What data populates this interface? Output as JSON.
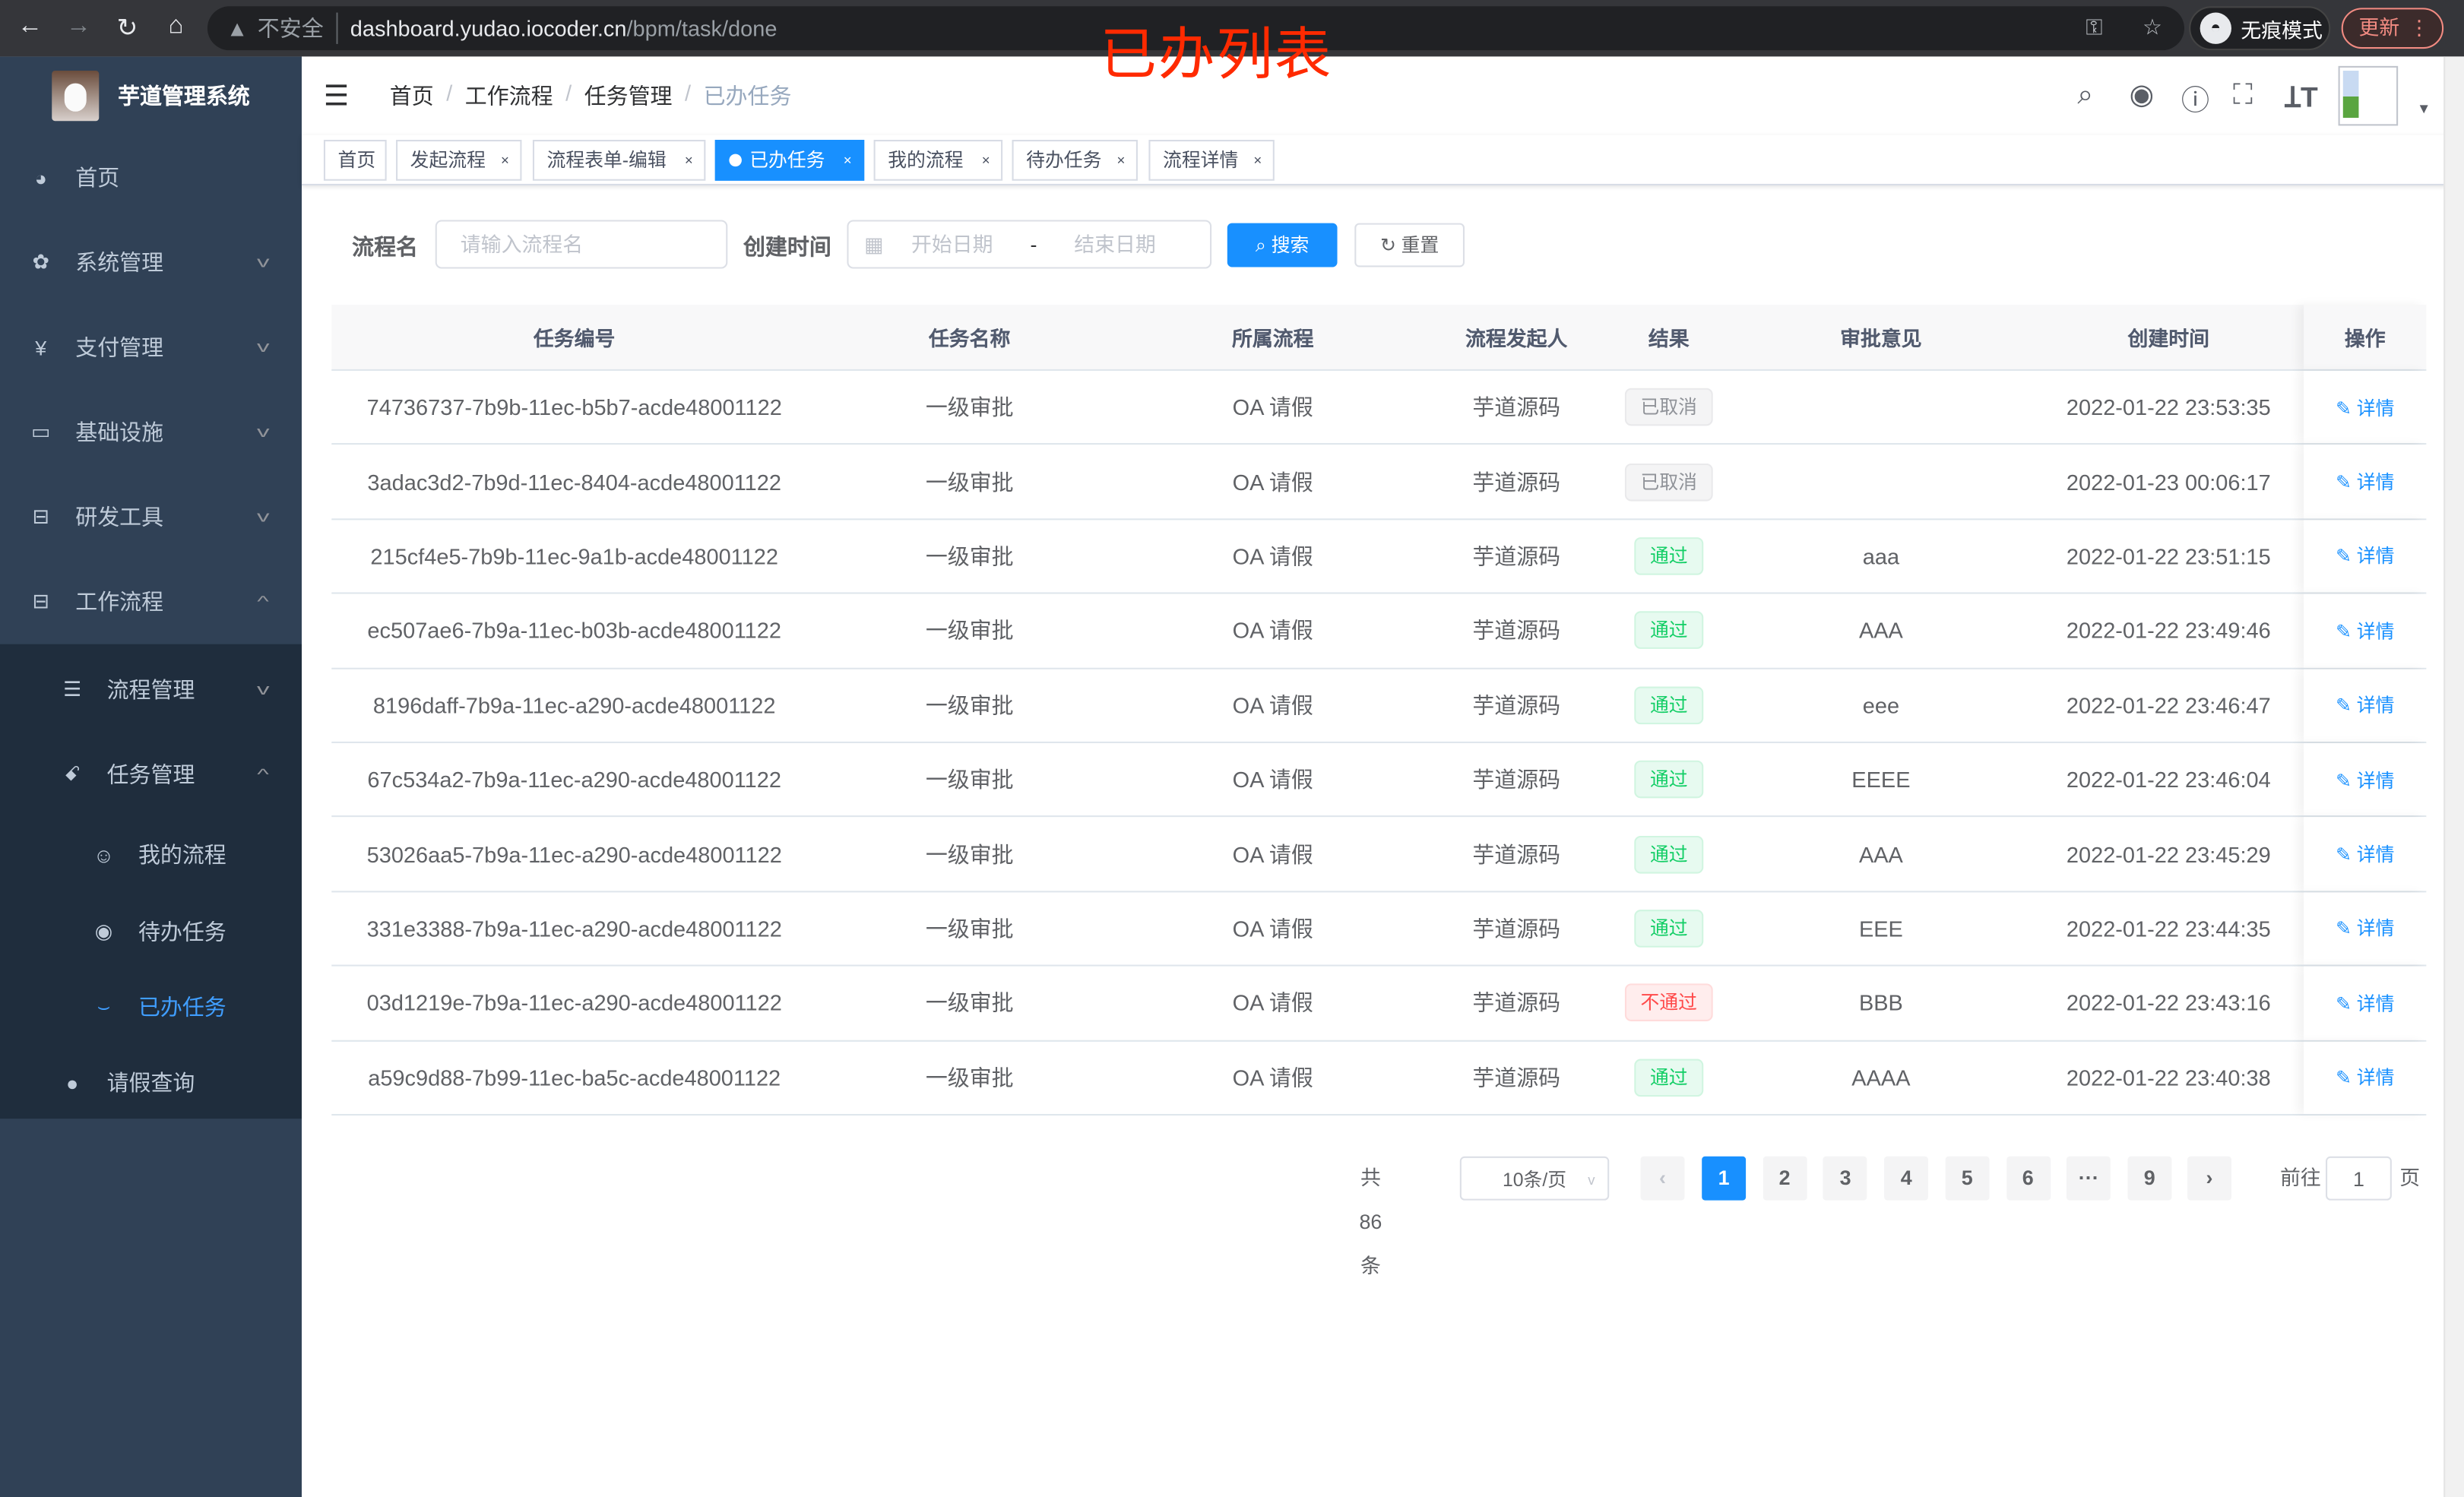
{
  "browser": {
    "security": "不安全",
    "url_host": "dashboard.yudao.iocoder.cn",
    "url_path": "/bpm/task/done",
    "incognito": "无痕模式",
    "update": "更新"
  },
  "annotation": "已办列表",
  "sidebar": {
    "title": "芋道管理系统",
    "items": [
      {
        "label": "首页",
        "icon": "dashboard-icon"
      },
      {
        "label": "系统管理",
        "icon": "gear-icon"
      },
      {
        "label": "支付管理",
        "icon": "yen-icon"
      },
      {
        "label": "基础设施",
        "icon": "monitor-icon"
      },
      {
        "label": "研发工具",
        "icon": "toolbox-icon"
      },
      {
        "label": "工作流程",
        "icon": "toolbox-icon"
      }
    ],
    "sub": [
      {
        "label": "流程管理",
        "icon": "list-icon"
      },
      {
        "label": "任务管理",
        "icon": "task-icon"
      },
      {
        "label": "我的流程",
        "icon": "face-icon"
      },
      {
        "label": "待办任务",
        "icon": "eye-open-icon"
      },
      {
        "label": "已办任务",
        "icon": "eye-closed-icon"
      },
      {
        "label": "请假查询",
        "icon": "user-icon"
      }
    ],
    "accent": "#409eff"
  },
  "breadcrumb": [
    "首页",
    "工作流程",
    "任务管理",
    "已办任务"
  ],
  "tags": [
    "首页",
    "发起流程",
    "流程表单-编辑",
    "已办任务",
    "我的流程",
    "待办任务",
    "流程详情"
  ],
  "search": {
    "name_label": "流程名",
    "name_placeholder": "请输入流程名",
    "time_label": "创建时间",
    "start_placeholder": "开始日期",
    "sep": "-",
    "end_placeholder": "结束日期",
    "search_btn": "搜索",
    "reset_btn": "重置"
  },
  "table": {
    "headers": [
      "任务编号",
      "任务名称",
      "所属流程",
      "流程发起人",
      "结果",
      "审批意见",
      "创建时间",
      "操作"
    ],
    "action": "详情",
    "rows": [
      {
        "id": "74736737-7b9b-11ec-b5b7-acde48001122",
        "name": "一级审批",
        "process": "OA 请假",
        "starter": "芋道源码",
        "result": "已取消",
        "status": "gray",
        "comment": "",
        "time": "2022-01-22 23:53:35"
      },
      {
        "id": "3adac3d2-7b9d-11ec-8404-acde48001122",
        "name": "一级审批",
        "process": "OA 请假",
        "starter": "芋道源码",
        "result": "已取消",
        "status": "gray",
        "comment": "",
        "time": "2022-01-23 00:06:17"
      },
      {
        "id": "215cf4e5-7b9b-11ec-9a1b-acde48001122",
        "name": "一级审批",
        "process": "OA 请假",
        "starter": "芋道源码",
        "result": "通过",
        "status": "green",
        "comment": "aaa",
        "time": "2022-01-22 23:51:15"
      },
      {
        "id": "ec507ae6-7b9a-11ec-b03b-acde48001122",
        "name": "一级审批",
        "process": "OA 请假",
        "starter": "芋道源码",
        "result": "通过",
        "status": "green",
        "comment": "AAA",
        "time": "2022-01-22 23:49:46"
      },
      {
        "id": "8196daff-7b9a-11ec-a290-acde48001122",
        "name": "一级审批",
        "process": "OA 请假",
        "starter": "芋道源码",
        "result": "通过",
        "status": "green",
        "comment": "eee",
        "time": "2022-01-22 23:46:47"
      },
      {
        "id": "67c534a2-7b9a-11ec-a290-acde48001122",
        "name": "一级审批",
        "process": "OA 请假",
        "starter": "芋道源码",
        "result": "通过",
        "status": "green",
        "comment": "EEEE",
        "time": "2022-01-22 23:46:04"
      },
      {
        "id": "53026aa5-7b9a-11ec-a290-acde48001122",
        "name": "一级审批",
        "process": "OA 请假",
        "starter": "芋道源码",
        "result": "通过",
        "status": "green",
        "comment": "AAA",
        "time": "2022-01-22 23:45:29"
      },
      {
        "id": "331e3388-7b9a-11ec-a290-acde48001122",
        "name": "一级审批",
        "process": "OA 请假",
        "starter": "芋道源码",
        "result": "通过",
        "status": "green",
        "comment": "EEE",
        "time": "2022-01-22 23:44:35"
      },
      {
        "id": "03d1219e-7b9a-11ec-a290-acde48001122",
        "name": "一级审批",
        "process": "OA 请假",
        "starter": "芋道源码",
        "result": "不通过",
        "status": "red",
        "comment": "BBB",
        "time": "2022-01-22 23:43:16"
      },
      {
        "id": "a59c9d88-7b99-11ec-ba5c-acde48001122",
        "name": "一级审批",
        "process": "OA 请假",
        "starter": "芋道源码",
        "result": "通过",
        "status": "green",
        "comment": "AAAA",
        "time": "2022-01-22 23:40:38"
      }
    ]
  },
  "pagination": {
    "total": "共 86 条",
    "page_size": "10条/页",
    "pages": [
      "1",
      "2",
      "3",
      "4",
      "5",
      "6",
      "···",
      "9"
    ],
    "current": "1",
    "goto_label": "前往",
    "goto_value": "1",
    "goto_suffix": "页"
  }
}
